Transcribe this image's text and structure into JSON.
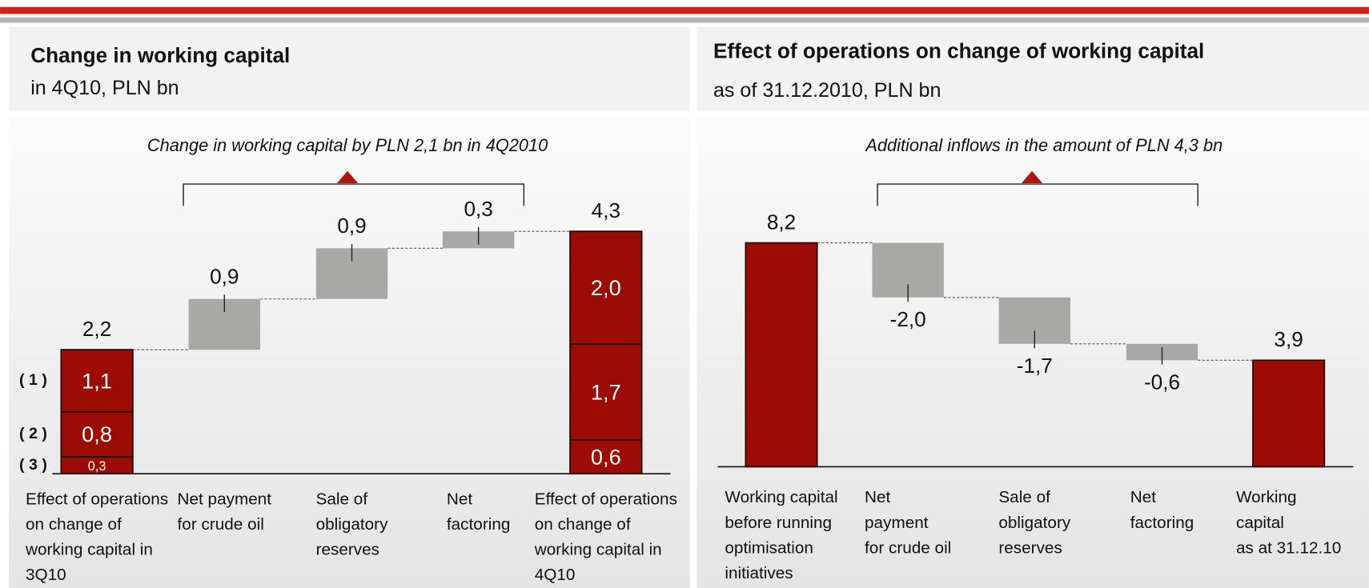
{
  "chart_data": [
    {
      "type": "waterfall",
      "title": "Change in working capital",
      "subtitle": "in 4Q10, PLN bn",
      "annotation": "Change in working capital by PLN 2,1 bn in 4Q2010",
      "categories": [
        "Effect of operations\non change of\nworking capital in\n3Q10",
        "Net payment\nfor crude oil",
        "Sale of\nobligatory\nreserves",
        "Net\nfactoring",
        "Effect of operations\non change of\nworking capital in\n4Q10"
      ],
      "values": [
        2.2,
        0.9,
        0.9,
        0.3,
        4.3
      ],
      "value_labels": [
        "2,2",
        "0,9",
        "0,9",
        "0,3",
        "4,3"
      ],
      "measures": [
        "total",
        "relative",
        "relative",
        "relative",
        "total"
      ],
      "total_color": "#9c0c05",
      "relative_color": "#a8a8a4",
      "stack_series": [
        {
          "name": "( 1 )",
          "values": [
            1.1,
            null,
            null,
            null,
            2.0
          ],
          "value_labels": [
            "1,1",
            null,
            null,
            null,
            "2,0"
          ]
        },
        {
          "name": "( 2 )",
          "values": [
            0.8,
            null,
            null,
            null,
            1.7
          ],
          "value_labels": [
            "0,8",
            null,
            null,
            null,
            "1,7"
          ]
        },
        {
          "name": "( 3 )",
          "values": [
            0.3,
            null,
            null,
            null,
            0.6
          ],
          "value_labels": [
            "0,3",
            null,
            null,
            null,
            "0,6"
          ]
        }
      ]
    },
    {
      "type": "waterfall",
      "title": "Effect of operations on change of working capital",
      "subtitle": "as of 31.12.2010, PLN bn",
      "annotation": "Additional inflows in the amount of PLN 4,3 bn",
      "categories": [
        "Working capital\nbefore running\noptimisation\ninitiatives",
        "Net\npayment\nfor crude oil",
        "Sale of\nobligatory\nreserves",
        "Net\nfactoring",
        "Working\ncapital\nas at 31.12.10"
      ],
      "values": [
        8.2,
        -2.0,
        -1.7,
        -0.6,
        3.9
      ],
      "value_labels": [
        "8,2",
        "-2,0",
        "-1,7",
        "-0,6",
        "3,9"
      ],
      "measures": [
        "total",
        "relative",
        "relative",
        "relative",
        "total"
      ],
      "total_color": "#9c0c05",
      "relative_color": "#a8a8a4"
    }
  ]
}
